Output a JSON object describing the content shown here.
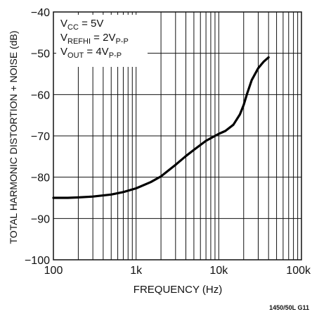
{
  "chart_data": {
    "type": "line",
    "title": "",
    "xlabel": "FREQUENCY (Hz)",
    "ylabel": "TOTAL HARMONIC DISTORTION + NOISE (dB)",
    "x_scale": "log",
    "xlim": [
      100,
      100000
    ],
    "ylim": [
      -100,
      -40
    ],
    "x_ticks": [
      100,
      1000,
      10000,
      100000
    ],
    "x_tick_labels": [
      "100",
      "1k",
      "10k",
      "100k"
    ],
    "y_ticks": [
      -40,
      -50,
      -60,
      -70,
      -80,
      -90,
      -100
    ],
    "y_tick_labels": [
      "−40",
      "−50",
      "−60",
      "−70",
      "−80",
      "−90",
      "−100"
    ],
    "grid": true,
    "conditions": [
      {
        "main": "V",
        "sub": "CC",
        "rest": " = 5V"
      },
      {
        "main": "V",
        "sub": "REFHI",
        "rest": " = 2V",
        "sub2": "P-P"
      },
      {
        "main": "V",
        "sub": "OUT",
        "rest": " = 4V",
        "sub2": "P-P"
      }
    ],
    "series": [
      {
        "x": [
          100,
          150,
          200,
          300,
          500,
          700,
          1000,
          1500,
          2000,
          3000,
          4000,
          5000,
          7000,
          10000,
          12000,
          15000,
          18000,
          20000,
          22000,
          25000,
          30000,
          35000,
          40000
        ],
        "y": [
          -85,
          -85,
          -84.9,
          -84.7,
          -84.2,
          -83.6,
          -82.7,
          -81.2,
          -79.8,
          -77,
          -74.9,
          -73.4,
          -71.2,
          -69.5,
          -68.8,
          -67.3,
          -64.8,
          -62.5,
          -59.8,
          -56.5,
          -53.6,
          -52,
          -51
        ]
      }
    ]
  },
  "footnote": "1450/50L G11"
}
